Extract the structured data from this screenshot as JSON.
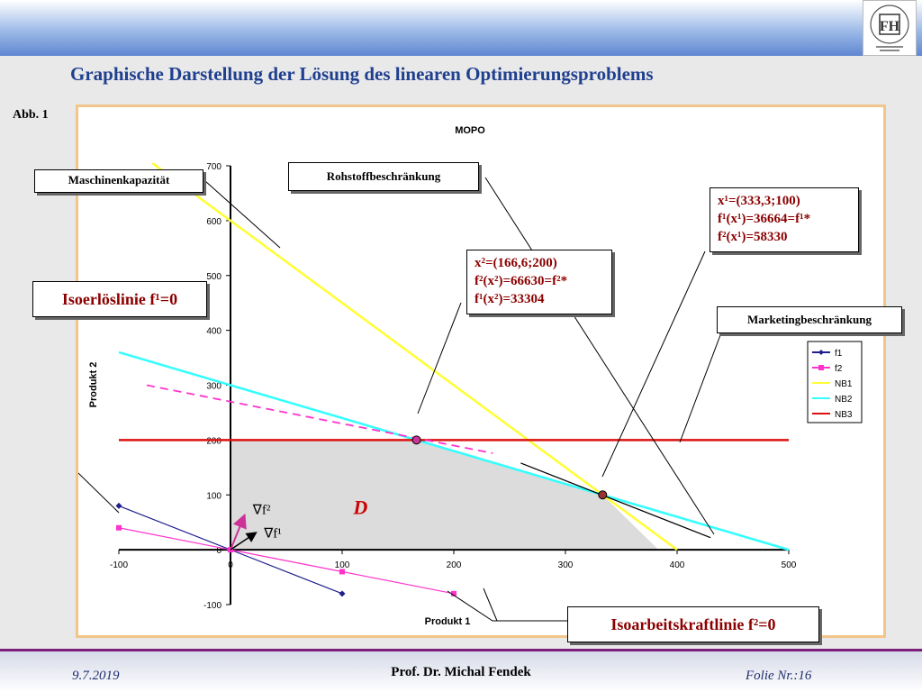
{
  "header": {
    "title": "Graphische Darstellung der Lösung des linearen Optimierungsproblems",
    "figure_label": "Abb. 1"
  },
  "labels": {
    "maschinen": "Maschinenkapazität",
    "rohstoff": "Rohstoffbeschränkung",
    "marketing": "Marketingbeschränkung",
    "isoerloes": "Isoerlöslinie f¹=0",
    "isoarbeit": "Isoarbeitskraftlinie f²=0",
    "region": "D",
    "grad_f2": "∇f²",
    "grad_f1": "∇f¹"
  },
  "solutions": {
    "x2": [
      "x²=(166,6;200)",
      "f²(x²)=66630=f²*",
      "f¹(x²)=33304"
    ],
    "x1": [
      "x¹=(333,3;100)",
      "f¹(x¹)=36664=f¹*",
      "f²(x¹)=58330"
    ]
  },
  "footer": {
    "date": "9.7.2019",
    "author": "Prof. Dr. Michal Fendek",
    "folie": "Folie Nr.:16"
  },
  "colors": {
    "f1": "#1f1f8f",
    "f2": "#ff33cc",
    "NB1": "#ffff33",
    "NB2": "#33ffff",
    "NB3": "#dd1111",
    "title": "#1f3f8f",
    "solution_text": "#8b0000"
  },
  "chart_data": {
    "type": "line",
    "title": "MOPO",
    "xlabel": "Produkt 1",
    "ylabel": "Produkt 2",
    "xlim": [
      -100,
      500
    ],
    "ylim": [
      -100,
      700
    ],
    "xticks": [
      -100,
      0,
      100,
      200,
      300,
      400,
      500
    ],
    "yticks": [
      -100,
      0,
      100,
      200,
      300,
      400,
      500,
      600,
      700
    ],
    "legend_position": "right",
    "series": [
      {
        "name": "f1",
        "x": [
          -100,
          0,
          100
        ],
        "y": [
          80,
          0,
          -80
        ],
        "color": "#1f1f8f",
        "marker": "diamond"
      },
      {
        "name": "f2",
        "x": [
          -100,
          0,
          100,
          200
        ],
        "y": [
          40,
          0,
          -40,
          -80
        ],
        "color": "#ff33cc",
        "marker": "square"
      },
      {
        "name": "NB1",
        "x": [
          -70,
          400
        ],
        "y": [
          705,
          0
        ],
        "color": "#ffff33"
      },
      {
        "name": "NB2",
        "x": [
          -100,
          500
        ],
        "y": [
          360,
          0
        ],
        "color": "#33ffff"
      },
      {
        "name": "NB3",
        "x": [
          -100,
          500
        ],
        "y": [
          200,
          200
        ],
        "color": "#dd1111"
      }
    ],
    "optimal_points": [
      {
        "name": "x2",
        "x": 166.6,
        "y": 200,
        "color": "#cc3399"
      },
      {
        "name": "x1",
        "x": 333.3,
        "y": 100,
        "color": "#993333"
      }
    ],
    "feasible_region": [
      [
        0,
        0
      ],
      [
        0,
        200
      ],
      [
        166.6,
        200
      ],
      [
        333.3,
        100
      ],
      [
        383.3,
        0
      ]
    ]
  }
}
